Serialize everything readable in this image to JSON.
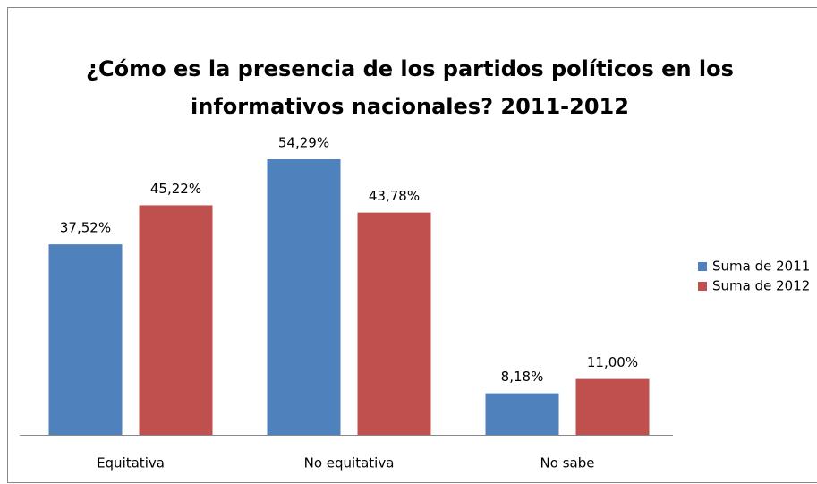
{
  "chart_data": {
    "type": "bar",
    "title": [
      "¿Cómo es la presencia de los partidos políticos en los",
      "informativos nacionales? 2011-2012"
    ],
    "categories": [
      "Equitativa",
      "No equitativa",
      "No sabe"
    ],
    "series": [
      {
        "name": "Suma de 2011",
        "color": "#4f81bd",
        "values": [
          37.52,
          54.29,
          8.18
        ],
        "value_labels": [
          "37,52%",
          "54,29%",
          "8,18%"
        ]
      },
      {
        "name": "Suma de 2012",
        "color": "#c0504d",
        "values": [
          45.22,
          43.78,
          11.0
        ],
        "value_labels": [
          "45,22%",
          "43,78%",
          "11,00%"
        ]
      }
    ],
    "legend": "right"
  }
}
